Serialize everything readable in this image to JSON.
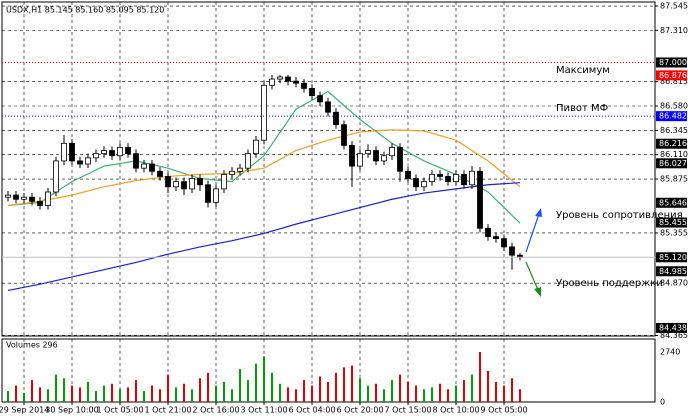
{
  "chart_data": {
    "type": "candlestick",
    "title": "USDX,H1 85.145 85.160 85.095 85.120",
    "xlim": [
      -0.75,
      80.875
    ],
    "ylim": [
      84.36,
      87.584
    ],
    "grid": true,
    "xticks": [
      {
        "value": 2,
        "label": "29 Sep 2014"
      },
      {
        "value": 8,
        "label": "30 Sep 10:00"
      },
      {
        "value": 14,
        "label": "1 Oct 05:00"
      },
      {
        "value": 20,
        "label": "1 Oct 21:00"
      },
      {
        "value": 26,
        "label": "2 Oct 16:00"
      },
      {
        "value": 32,
        "label": "3 Oct 11:00"
      },
      {
        "value": 38,
        "label": "6 Oct 04:00"
      },
      {
        "value": 44,
        "label": "6 Oct 20:00"
      },
      {
        "value": 50,
        "label": "7 Oct 15:00"
      },
      {
        "value": 56,
        "label": "8 Oct 10:00"
      },
      {
        "value": 62,
        "label": "9 Oct 05:00"
      }
    ],
    "yticks": [
      {
        "value": 87.545,
        "label": "87.545"
      },
      {
        "value": 87.31,
        "label": "87.310"
      },
      {
        "value": 86.815,
        "label": "86.815"
      },
      {
        "value": 86.58,
        "label": "86.580"
      },
      {
        "value": 86.345,
        "label": "86.345"
      },
      {
        "value": 86.11,
        "label": "86.110"
      },
      {
        "value": 85.875,
        "label": "85.875"
      },
      {
        "value": 85.355,
        "label": "85.355"
      },
      {
        "value": 84.87,
        "label": "84.870"
      },
      {
        "value": 84.365,
        "label": "84.365"
      }
    ],
    "levels": [
      {
        "value": 87.0,
        "label": "87.000",
        "color": "#000000",
        "line": "#ff0000"
      },
      {
        "value": 86.876,
        "label": "86.876",
        "color": "#ff0000"
      },
      {
        "value": 86.482,
        "label": "86.482",
        "color": "#0000ff",
        "line": "#0000ff"
      },
      {
        "value": 86.216,
        "label": "86.216",
        "color": "#000000"
      },
      {
        "value": 86.027,
        "label": "86.027",
        "color": "#000000"
      },
      {
        "value": 85.646,
        "label": "85.646",
        "color": "#000000"
      },
      {
        "value": 85.455,
        "label": "85.455",
        "color": "#000000"
      },
      {
        "value": 85.12,
        "label": "85.120",
        "color": "#000000",
        "line": "#c0c0c0"
      },
      {
        "value": 84.985,
        "label": "84.985",
        "color": "#000000"
      },
      {
        "value": 84.438,
        "label": "84.438",
        "color": "#000000"
      }
    ],
    "annotations": [
      "Максимум",
      "Пивот МФ",
      "Уровень сопротивления",
      "Уровень поддержки"
    ],
    "ohlc": [
      [
        85.7,
        85.76,
        85.66,
        85.72
      ],
      [
        85.72,
        85.76,
        85.64,
        85.68
      ],
      [
        85.68,
        85.74,
        85.64,
        85.7
      ],
      [
        85.7,
        85.74,
        85.62,
        85.66
      ],
      [
        85.66,
        85.7,
        85.58,
        85.62
      ],
      [
        85.62,
        85.79,
        85.58,
        85.75
      ],
      [
        85.75,
        86.09,
        85.71,
        86.05
      ],
      [
        86.05,
        86.3,
        86.01,
        86.22
      ],
      [
        86.22,
        86.26,
        86.01,
        86.05
      ],
      [
        86.05,
        86.09,
        85.98,
        86.02
      ],
      [
        86.02,
        86.12,
        85.98,
        86.08
      ],
      [
        86.08,
        86.16,
        86.04,
        86.12
      ],
      [
        86.12,
        86.19,
        86.08,
        86.15
      ],
      [
        86.15,
        86.19,
        86.06,
        86.1
      ],
      [
        86.1,
        86.22,
        86.06,
        86.18
      ],
      [
        86.18,
        86.22,
        86.08,
        86.12
      ],
      [
        86.12,
        86.16,
        85.94,
        85.98
      ],
      [
        85.98,
        86.06,
        85.94,
        86.02
      ],
      [
        86.02,
        86.06,
        85.91,
        85.95
      ],
      [
        85.95,
        85.99,
        85.86,
        85.9
      ],
      [
        85.9,
        85.94,
        85.74,
        85.8
      ],
      [
        85.8,
        85.89,
        85.76,
        85.85
      ],
      [
        85.85,
        85.89,
        85.72,
        85.78
      ],
      [
        85.78,
        85.92,
        85.74,
        85.88
      ],
      [
        85.88,
        85.92,
        85.76,
        85.82
      ],
      [
        85.82,
        85.86,
        85.6,
        85.65
      ],
      [
        85.65,
        85.82,
        85.61,
        85.78
      ],
      [
        85.78,
        85.96,
        85.74,
        85.92
      ],
      [
        85.92,
        85.99,
        85.88,
        85.95
      ],
      [
        85.95,
        86.02,
        85.91,
        85.98
      ],
      [
        85.98,
        86.16,
        85.94,
        86.12
      ],
      [
        86.12,
        86.29,
        86.08,
        86.25
      ],
      [
        86.25,
        86.82,
        86.21,
        86.78
      ],
      [
        86.78,
        86.88,
        86.74,
        86.84
      ],
      [
        86.84,
        86.88,
        86.8,
        86.86
      ],
      [
        86.86,
        86.88,
        86.78,
        86.82
      ],
      [
        86.82,
        86.86,
        86.76,
        86.8
      ],
      [
        86.8,
        86.84,
        86.71,
        86.75
      ],
      [
        86.75,
        86.79,
        86.64,
        86.68
      ],
      [
        86.68,
        86.72,
        86.58,
        86.62
      ],
      [
        86.62,
        86.66,
        86.48,
        86.52
      ],
      [
        86.52,
        86.56,
        86.36,
        86.4
      ],
      [
        86.4,
        86.44,
        86.16,
        86.2
      ],
      [
        86.2,
        86.24,
        85.8,
        86.0
      ],
      [
        86.0,
        86.16,
        85.96,
        86.12
      ],
      [
        86.12,
        86.21,
        86.08,
        86.15
      ],
      [
        86.15,
        86.19,
        86.01,
        86.05
      ],
      [
        86.05,
        86.14,
        86.01,
        86.1
      ],
      [
        86.1,
        86.22,
        86.06,
        86.18
      ],
      [
        86.18,
        86.22,
        85.85,
        85.95
      ],
      [
        85.95,
        85.99,
        85.84,
        85.88
      ],
      [
        85.88,
        85.92,
        85.76,
        85.8
      ],
      [
        85.8,
        85.89,
        85.76,
        85.85
      ],
      [
        85.85,
        85.96,
        85.81,
        85.92
      ],
      [
        85.92,
        85.96,
        85.86,
        85.9
      ],
      [
        85.9,
        85.94,
        85.81,
        85.85
      ],
      [
        85.85,
        85.96,
        85.81,
        85.92
      ],
      [
        85.92,
        85.96,
        85.78,
        85.82
      ],
      [
        85.82,
        86.0,
        85.78,
        85.95
      ],
      [
        85.95,
        85.99,
        85.36,
        85.4
      ],
      [
        85.4,
        85.44,
        85.28,
        85.32
      ],
      [
        85.32,
        85.36,
        85.26,
        85.3
      ],
      [
        85.3,
        85.34,
        85.18,
        85.22
      ],
      [
        85.22,
        85.26,
        85.0,
        85.14
      ],
      [
        85.14,
        85.16,
        85.09,
        85.12
      ]
    ],
    "series": [
      {
        "color": "#3cb371",
        "x": [
          0,
          4,
          8,
          12,
          16,
          20,
          24,
          28,
          32,
          36,
          40,
          44,
          48,
          52,
          56,
          60,
          64
        ],
        "values": [
          85.62,
          85.65,
          85.85,
          86.0,
          86.05,
          85.98,
          85.88,
          85.85,
          86.1,
          86.55,
          86.72,
          86.45,
          86.22,
          86.05,
          85.92,
          85.75,
          85.45
        ]
      },
      {
        "color": "#f0a020",
        "x": [
          0,
          4,
          8,
          12,
          16,
          20,
          24,
          28,
          32,
          36,
          40,
          44,
          48,
          52,
          56,
          60,
          64
        ],
        "values": [
          85.62,
          85.66,
          85.72,
          85.8,
          85.86,
          85.9,
          85.92,
          85.93,
          85.98,
          86.15,
          86.25,
          86.33,
          86.35,
          86.34,
          86.25,
          86.05,
          85.8
        ]
      },
      {
        "color": "#1e1ed2",
        "x": [
          0,
          4,
          8,
          12,
          16,
          20,
          24,
          28,
          32,
          36,
          40,
          44,
          48,
          52,
          56,
          60,
          64
        ],
        "values": [
          84.8,
          84.86,
          84.93,
          85.0,
          85.07,
          85.15,
          85.22,
          85.28,
          85.35,
          85.44,
          85.52,
          85.6,
          85.68,
          85.74,
          85.78,
          85.82,
          85.84
        ]
      }
    ],
    "volume": {
      "title": "Volumes 296",
      "ylim": [
        0,
        2740
      ],
      "yticks": [
        2740,
        0
      ],
      "values": [
        600,
        900,
        500,
        1200,
        800,
        700,
        1500,
        1300,
        900,
        800,
        1100,
        600,
        900,
        1000,
        700,
        800,
        1200,
        600,
        900,
        700,
        1500,
        800,
        1000,
        700,
        1300,
        1600,
        900,
        1100,
        700,
        1800,
        1200,
        2100,
        2500,
        1600,
        1000,
        800,
        700,
        1200,
        900,
        1400,
        1100,
        1600,
        1900,
        2000,
        1300,
        900,
        1000,
        700,
        1200,
        1500,
        1100,
        900,
        700,
        800,
        1000,
        700,
        900,
        1200,
        1500,
        2740,
        1700,
        1100,
        900,
        1300,
        700
      ]
    }
  }
}
